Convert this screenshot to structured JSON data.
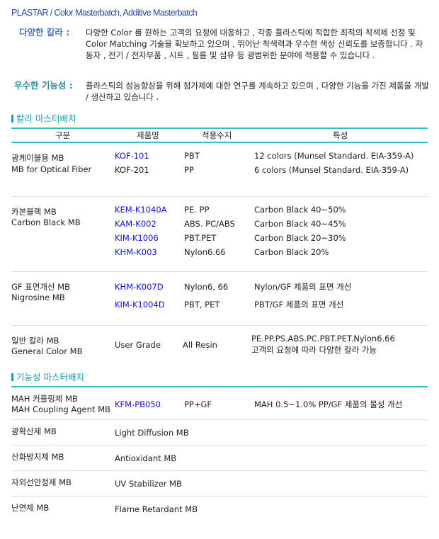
{
  "title": "PLASTAR / Color Masterbatch, Additive Masterbatch",
  "intro": [
    {
      "label": "다양한 칼라 :",
      "text": "다양한 Color 를 원하는 고객의 요청에 대응하고 , 각종 플라스틱에 적합한 최적의 착색제 선정 및 Color Matching 기술을 확보하고 있으며 , 뛰어난 착색력과 우수한 색상 신뢰도를 보증합니다 . 자동차 , 전기 / 전자부품 , 시트 , 필름 및 섬유 등 광범위한 분야에 적용할 수 있습니다 ."
    },
    {
      "label": "우수한 기능성 :",
      "text": "플라스틱의 성능향상을 위해 첨가제에 대한 연구를 계속하고 있으며 , 다양한 기능을 가진 제품을 개발 / 생산하고 있습니다 ."
    }
  ],
  "colors": {
    "accent": "#3cbcc4",
    "link": "#1010e0",
    "title": "#2a4a9a"
  },
  "color_section": {
    "heading": "칼라 마스터배치",
    "columns": [
      "구분",
      "제품명",
      "적용수지",
      "특성"
    ],
    "rows": [
      {
        "category": [
          "광케이블용 MB",
          "MB for Optical Fiber"
        ],
        "items": [
          [
            "KOF-101",
            "PBT",
            "12 colors (Munsel Standard. EIA-359-A)"
          ],
          [
            "KOF-201",
            "PP",
            "6 colors (Munsel Standard. EIA-359-A)"
          ]
        ]
      },
      {
        "category": [
          "카본블랙 MB",
          "Carbon Black MB"
        ],
        "items": [
          [
            "KEM-K1040A",
            "PE. PP",
            "Carbon Black 40~50%"
          ],
          [
            "KAM-K002",
            "ABS. PC/ABS",
            "Carbon Black 40~45%"
          ],
          [
            "KIM-K1006",
            "PBT.PET",
            "Carbon Black 20~30%"
          ],
          [
            "KHM-K003",
            "Nylon6.66",
            "Carbon Black 20%"
          ]
        ]
      },
      {
        "category": [
          "GF 표면개선 MB",
          "Nigrosine MB"
        ],
        "items": [
          [
            "KHM-K007D",
            "Nylon6, 66",
            "Nylon/GF 제품의 표면 개선"
          ],
          [
            "KIM-K1004D",
            "PBT, PET",
            "PBT/GF 제품의 표면 개선"
          ]
        ]
      },
      {
        "category": [
          "일반 칼라 MB",
          "General Color MB"
        ],
        "items": [
          [
            "User Grade",
            "All Resin",
            "PE.PP.PS.ABS.PC.PBT.PET.Nylon6.66",
            "고객의 요청에 따라 다양한 칼라 가능"
          ]
        ]
      }
    ]
  },
  "functional_section": {
    "heading": "기능성 마스터배치",
    "rows": [
      {
        "category": [
          "MAH 커플링제 MB",
          "MAH Coupling Agent MB"
        ],
        "product": "KFM-PB050",
        "resin": "PP+GF",
        "feature": "MAH 0.5~1.0% PP/GF 제품의 물성 개선"
      },
      {
        "category": "광확산제 MB",
        "name": "Light Diffusion MB"
      },
      {
        "category": "산화방지제 MB",
        "name": "Antioxidant MB"
      },
      {
        "category": "자외선안정제 MB",
        "name": "UV Stabilizer MB"
      },
      {
        "category": "난연제 MB",
        "name": "Flame Retardant MB"
      }
    ]
  }
}
